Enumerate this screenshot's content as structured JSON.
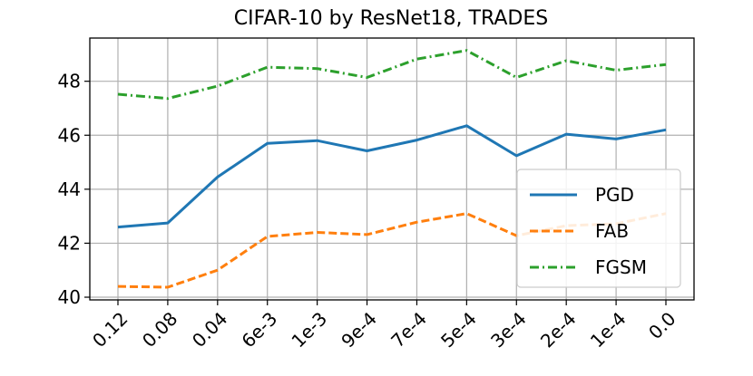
{
  "chart_data": {
    "type": "line",
    "title": "CIFAR-10 by ResNet18, TRADES",
    "xlabel": "",
    "ylabel": "",
    "categories": [
      "0.12",
      "0.08",
      "0.04",
      "6e-3",
      "1e-3",
      "9e-4",
      "7e-4",
      "5e-4",
      "3e-4",
      "2e-4",
      "1e-4",
      "0.0"
    ],
    "ylim": [
      39.9,
      49.6
    ],
    "yticks": [
      40,
      42,
      44,
      46,
      48
    ],
    "ytick_labels": [
      "40",
      "42",
      "44",
      "46",
      "48"
    ],
    "grid": true,
    "legend_position": "lower-right",
    "series": [
      {
        "name": "PGD",
        "color": "#1f77b4",
        "style": "solid",
        "values": [
          42.6,
          42.75,
          44.45,
          45.7,
          45.8,
          45.42,
          45.82,
          46.35,
          45.24,
          46.04,
          45.86,
          46.2
        ]
      },
      {
        "name": "FAB",
        "color": "#ff7f0e",
        "style": "dashed",
        "values": [
          40.4,
          40.37,
          41.0,
          42.25,
          42.4,
          42.32,
          42.78,
          43.1,
          42.28,
          42.65,
          42.72,
          43.1
        ]
      },
      {
        "name": "FGSM",
        "color": "#2ca02c",
        "style": "dashdot",
        "values": [
          47.52,
          47.36,
          47.82,
          48.52,
          48.47,
          48.14,
          48.82,
          49.14,
          48.14,
          48.76,
          48.41,
          48.62
        ]
      }
    ]
  }
}
